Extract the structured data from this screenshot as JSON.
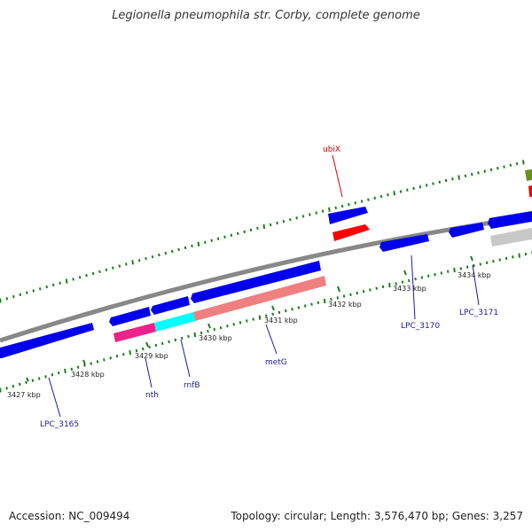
{
  "title": "Legionella pneumophila str. Corby, complete genome",
  "footer": {
    "accession": "Accession: NC_009494",
    "stats": "Topology: circular; Length: 3,576,470 bp; Genes: 3,257"
  },
  "ticks": [
    "3427 kbp",
    "3428 kbp",
    "3429 kbp",
    "3430 kbp",
    "3431 kbp",
    "3432 kbp",
    "3433 kbp",
    "3434 kbp"
  ],
  "gene_labels": [
    "ubiX",
    "LPC_3165",
    "nth",
    "rnfB",
    "metG",
    "LPC_3170",
    "LPC_3171"
  ],
  "colors": {
    "backbone": "#888888",
    "forward_cds": "#0000ee",
    "reverse_cds": "#0000ee",
    "ubiX": "#ff0000",
    "nth": "#ee2288",
    "rnfB": "#00ffff",
    "metG": "#f08080",
    "gray_feature": "#c8c8c8",
    "olive_feature": "#6b8e23",
    "tick_color": "#1e7d1e",
    "label_blue": "#1a1aa6",
    "label_red": "#d40000"
  }
}
